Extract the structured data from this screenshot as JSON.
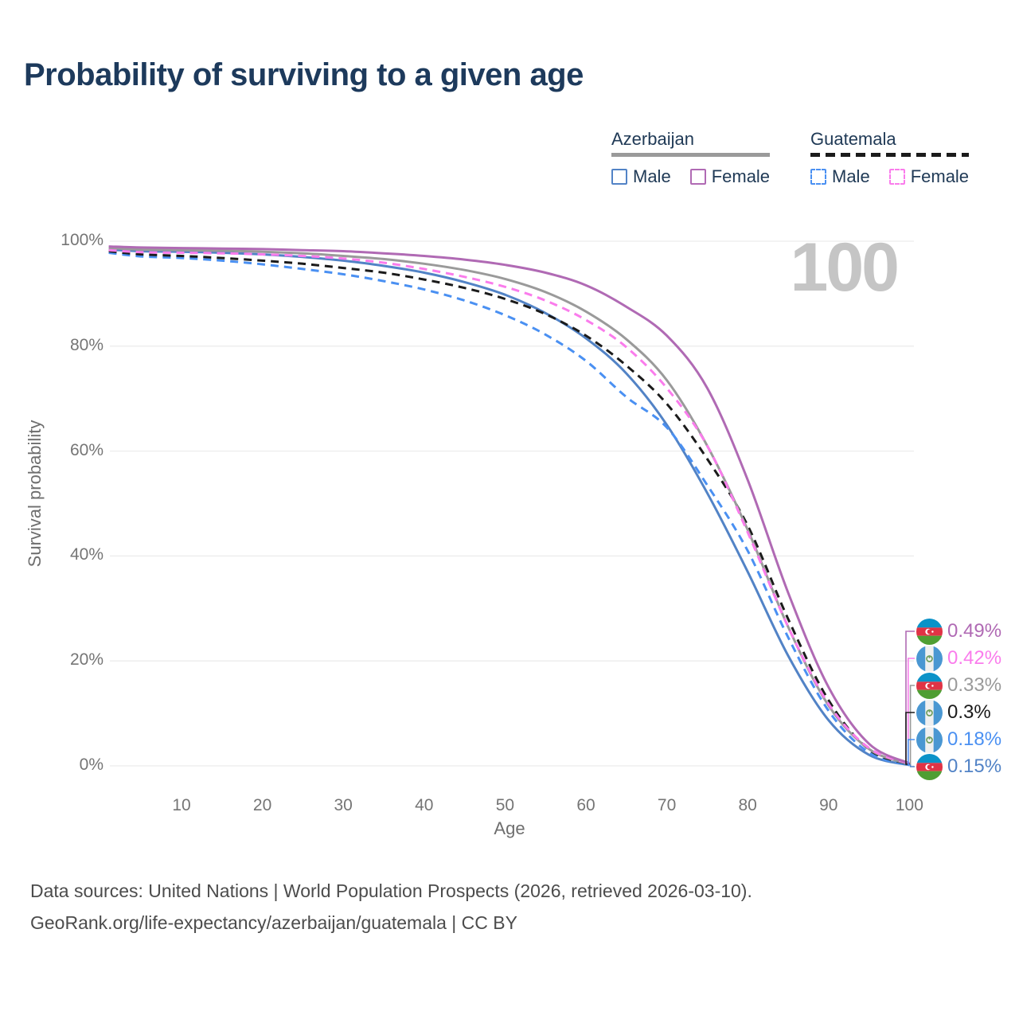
{
  "page": {
    "title": "Probability of surviving to a given age",
    "watermark": "100"
  },
  "legend": {
    "groups": [
      {
        "id": "azerbaijan",
        "title": "Azerbaijan",
        "style": "solid",
        "line_color": "#9a9a9a",
        "items": [
          {
            "label": "Male",
            "color": "#5283c6"
          },
          {
            "label": "Female",
            "color": "#b06ab4"
          }
        ]
      },
      {
        "id": "guatemala",
        "title": "Guatemala",
        "style": "dashed",
        "line_color": "#1b1b1b",
        "items": [
          {
            "label": "Male",
            "color": "#4a90f2"
          },
          {
            "label": "Female",
            "color": "#fa7cec"
          }
        ]
      }
    ]
  },
  "chart_data": {
    "type": "line",
    "title": "Probability of surviving to a given age",
    "xlabel": "Age",
    "ylabel": "Survival probability",
    "xlim": [
      1,
      100
    ],
    "ylim": [
      0,
      100
    ],
    "grid": true,
    "legend_position": "top-right",
    "watermark": "100",
    "x": [
      1,
      5,
      10,
      15,
      20,
      25,
      30,
      35,
      40,
      45,
      50,
      55,
      60,
      65,
      70,
      75,
      80,
      85,
      90,
      95,
      100
    ],
    "x_ticks": [
      10,
      20,
      30,
      40,
      50,
      60,
      70,
      80,
      90,
      100
    ],
    "y_ticks": [
      {
        "value": 100,
        "label": "100%"
      },
      {
        "value": 80,
        "label": "80%"
      },
      {
        "value": 60,
        "label": "60%"
      },
      {
        "value": 40,
        "label": "40%"
      },
      {
        "value": 20,
        "label": "20%"
      },
      {
        "value": 0,
        "label": "0%"
      }
    ],
    "series": [
      {
        "name": "Azerbaijan Female",
        "country": "azerbaijan",
        "sex": "female",
        "line": "solid",
        "color": "#b06ab4",
        "end_label": "0.49%",
        "values": [
          99.0,
          98.8,
          98.7,
          98.6,
          98.5,
          98.3,
          98.1,
          97.7,
          97.2,
          96.5,
          95.5,
          94.0,
          91.6,
          87.5,
          82.0,
          72.0,
          54.5,
          33.0,
          15.0,
          4.2,
          0.49
        ]
      },
      {
        "name": "Guatemala Female",
        "country": "guatemala",
        "sex": "female",
        "line": "dashed",
        "color": "#fa7cec",
        "end_label": "0.42%",
        "values": [
          98.3,
          97.9,
          97.8,
          97.7,
          97.5,
          97.2,
          96.7,
          95.9,
          94.7,
          93.2,
          91.3,
          88.7,
          85.0,
          79.8,
          72.0,
          61.0,
          44.5,
          26.5,
          11.8,
          3.4,
          0.42
        ]
      },
      {
        "name": "Azerbaijan Both sexes",
        "country": "azerbaijan",
        "sex": "both",
        "line": "solid",
        "color": "#9a9a9a",
        "end_label": "0.33%",
        "values": [
          98.7,
          98.4,
          98.3,
          98.2,
          98.0,
          97.7,
          97.2,
          96.6,
          95.7,
          94.5,
          92.8,
          90.3,
          86.6,
          81.3,
          73.5,
          61.0,
          45.0,
          26.5,
          11.5,
          3.2,
          0.33
        ]
      },
      {
        "name": "Guatemala Both sexes",
        "country": "guatemala",
        "sex": "both",
        "line": "dashed",
        "color": "#1b1b1b",
        "end_label": "0.3%",
        "values": [
          98.1,
          97.5,
          97.2,
          96.8,
          96.3,
          95.7,
          94.9,
          94.0,
          92.7,
          91.1,
          89.0,
          86.1,
          82.0,
          76.3,
          69.0,
          58.5,
          45.8,
          28.0,
          12.5,
          3.1,
          0.3
        ]
      },
      {
        "name": "Guatemala Male",
        "country": "guatemala",
        "sex": "male",
        "line": "dashed",
        "color": "#4a90f2",
        "end_label": "0.18%",
        "values": [
          97.8,
          97.1,
          96.8,
          96.3,
          95.6,
          94.7,
          93.7,
          92.4,
          90.8,
          88.7,
          85.9,
          82.2,
          77.2,
          70.3,
          64.5,
          53.5,
          41.0,
          24.5,
          10.5,
          2.5,
          0.18
        ]
      },
      {
        "name": "Azerbaijan Male",
        "country": "azerbaijan",
        "sex": "male",
        "line": "solid",
        "color": "#5283c6",
        "end_label": "0.15%",
        "values": [
          98.4,
          98.1,
          98.0,
          97.8,
          97.5,
          97.0,
          96.3,
          95.3,
          94.0,
          92.2,
          89.8,
          86.3,
          81.5,
          74.8,
          65.0,
          52.0,
          37.0,
          21.0,
          8.7,
          2.1,
          0.15
        ]
      }
    ]
  },
  "footer": {
    "line1": "Data sources: United Nations | World Population Prospects (2026, retrieved 2026-03-10).",
    "line2": "GeoRank.org/life-expectancy/azerbaijan/guatemala | CC BY"
  }
}
